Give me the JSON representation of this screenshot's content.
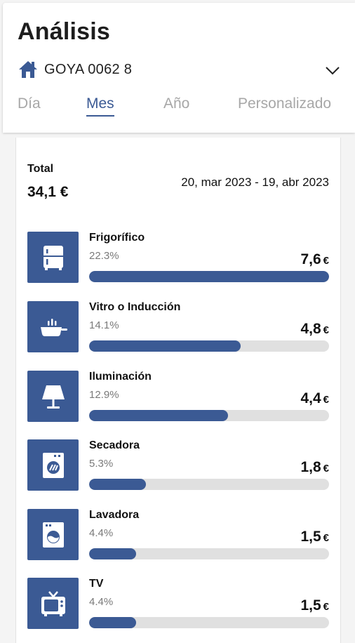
{
  "header": {
    "title": "Análisis",
    "location": "GOYA 0062 8",
    "tabs": [
      {
        "label": "Día",
        "active": false
      },
      {
        "label": "Mes",
        "active": true
      },
      {
        "label": "Año",
        "active": false
      },
      {
        "label": "Personalizado",
        "active": false
      }
    ]
  },
  "summary": {
    "total_label": "Total",
    "total_value": "34,1 €",
    "date_range": "20, mar 2023 - 19, abr 2023"
  },
  "items": [
    {
      "name": "Frigorífico",
      "percent": "22.3%",
      "amount": "7,6",
      "currency": "€",
      "icon": "fridge-icon",
      "bar_fraction": 1.0
    },
    {
      "name": "Vitro o Inducción",
      "percent": "14.1%",
      "amount": "4,8",
      "currency": "€",
      "icon": "cooking-pan-icon",
      "bar_fraction": 0.632
    },
    {
      "name": "Iluminación",
      "percent": "12.9%",
      "amount": "4,4",
      "currency": "€",
      "icon": "lamp-icon",
      "bar_fraction": 0.579
    },
    {
      "name": "Secadora",
      "percent": "5.3%",
      "amount": "1,8",
      "currency": "€",
      "icon": "dryer-icon",
      "bar_fraction": 0.237
    },
    {
      "name": "Lavadora",
      "percent": "4.4%",
      "amount": "1,5",
      "currency": "€",
      "icon": "washing-machine-icon",
      "bar_fraction": 0.197
    },
    {
      "name": "TV",
      "percent": "4.4%",
      "amount": "1,5",
      "currency": "€",
      "icon": "tv-icon",
      "bar_fraction": 0.197
    }
  ],
  "colors": {
    "accent": "#3b5a94",
    "track": "#e0e0e0",
    "inactive_tab": "#a7a7a7"
  }
}
